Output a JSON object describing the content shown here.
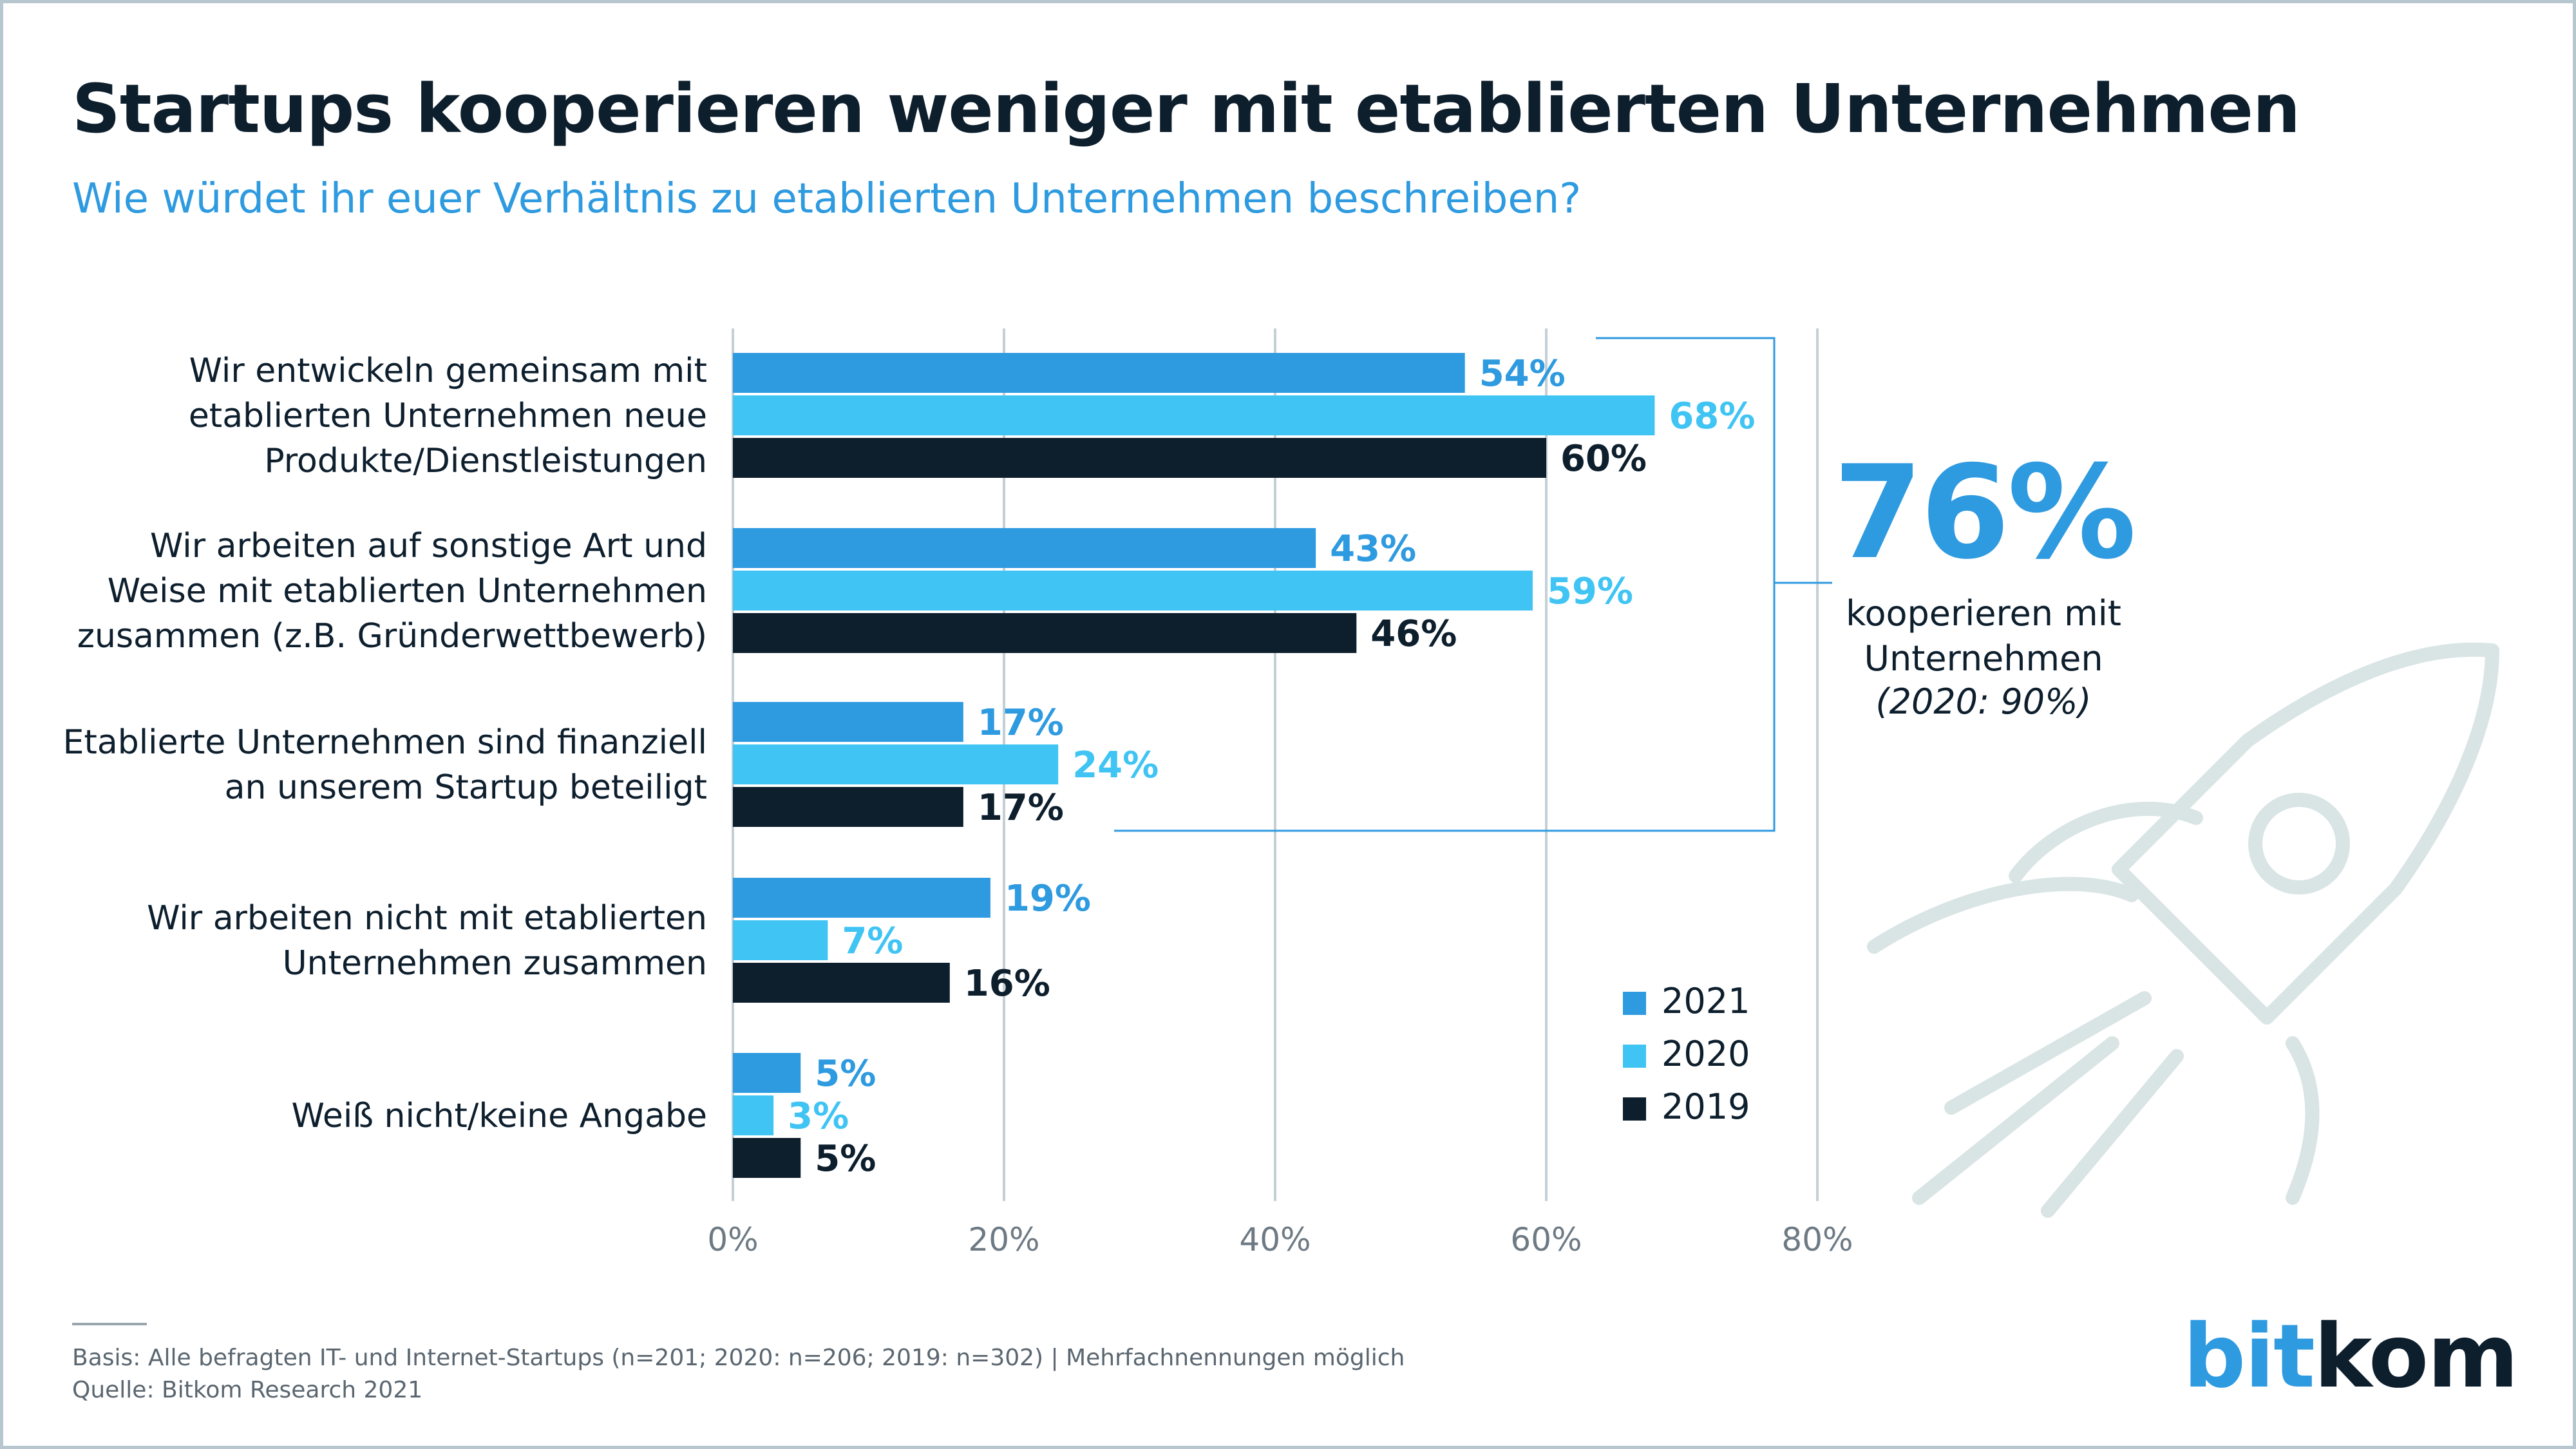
{
  "title": "Startups kooperieren weniger mit etablierten Unternehmen",
  "subtitle": "Wie würdet ihr euer Verhältnis zu etablierten Unternehmen beschreiben?",
  "chart_data": {
    "type": "bar",
    "orientation": "horizontal",
    "categories": [
      "Wir entwickeln gemeinsam mit etablierten Unternehmen neue Produkte/Dienstleistungen",
      "Wir arbeiten auf sonstige Art und Weise mit etablierten Unternehmen zusammen (z.B. Gründerwettbewerb)",
      "Etablierte Unternehmen sind finanziell an unserem Startup beteiligt",
      "Wir arbeiten nicht mit etablierten Unternehmen zusammen",
      "Weiß nicht/keine Angabe"
    ],
    "category_lines": [
      [
        "Wir entwickeln gemeinsam mit",
        "etablierten Unternehmen neue",
        "Produkte/Dienstleistungen"
      ],
      [
        "Wir arbeiten auf sonstige Art und",
        "Weise mit etablierten Unternehmen",
        "zusammen (z.B. Gründerwettbewerb)"
      ],
      [
        "Etablierte Unternehmen sind finanziell",
        "an unserem Startup beteiligt"
      ],
      [
        "Wir arbeiten nicht mit etablierten",
        "Unternehmen zusammen"
      ],
      [
        "Weiß nicht/keine Angabe"
      ]
    ],
    "series": [
      {
        "name": "2021",
        "color": "#2e9ae0",
        "label_color": "#2e9ae0",
        "values": [
          54,
          43,
          17,
          19,
          5
        ]
      },
      {
        "name": "2020",
        "color": "#40c4f4",
        "label_color": "#40c4f4",
        "values": [
          68,
          59,
          24,
          7,
          3
        ]
      },
      {
        "name": "2019",
        "color": "#0d1e2d",
        "label_color": "#0d1e2d",
        "values": [
          60,
          46,
          17,
          16,
          5
        ]
      }
    ],
    "value_suffix": "%",
    "xlim": [
      0,
      80
    ],
    "xticks": [
      0,
      20,
      40,
      60,
      80
    ],
    "xtick_labels": [
      "0%",
      "20%",
      "40%",
      "60%",
      "80%"
    ],
    "grid": true,
    "legend_position": "bottom-right"
  },
  "callout": {
    "big_value": "76%",
    "text_line1": "kooperieren mit",
    "text_line2": "Unternehmen",
    "note": "(2020: 90%)"
  },
  "footer": {
    "basis": "Basis: Alle befragten IT- und Internet-Startups (n=201; 2020: n=206; 2019: n=302) | Mehrfachnennungen möglich",
    "source": "Quelle: Bitkom Research 2021"
  },
  "logo": {
    "part1": "bit",
    "part2": "kom"
  },
  "decor": {
    "rocket_icon": "rocket-icon"
  }
}
